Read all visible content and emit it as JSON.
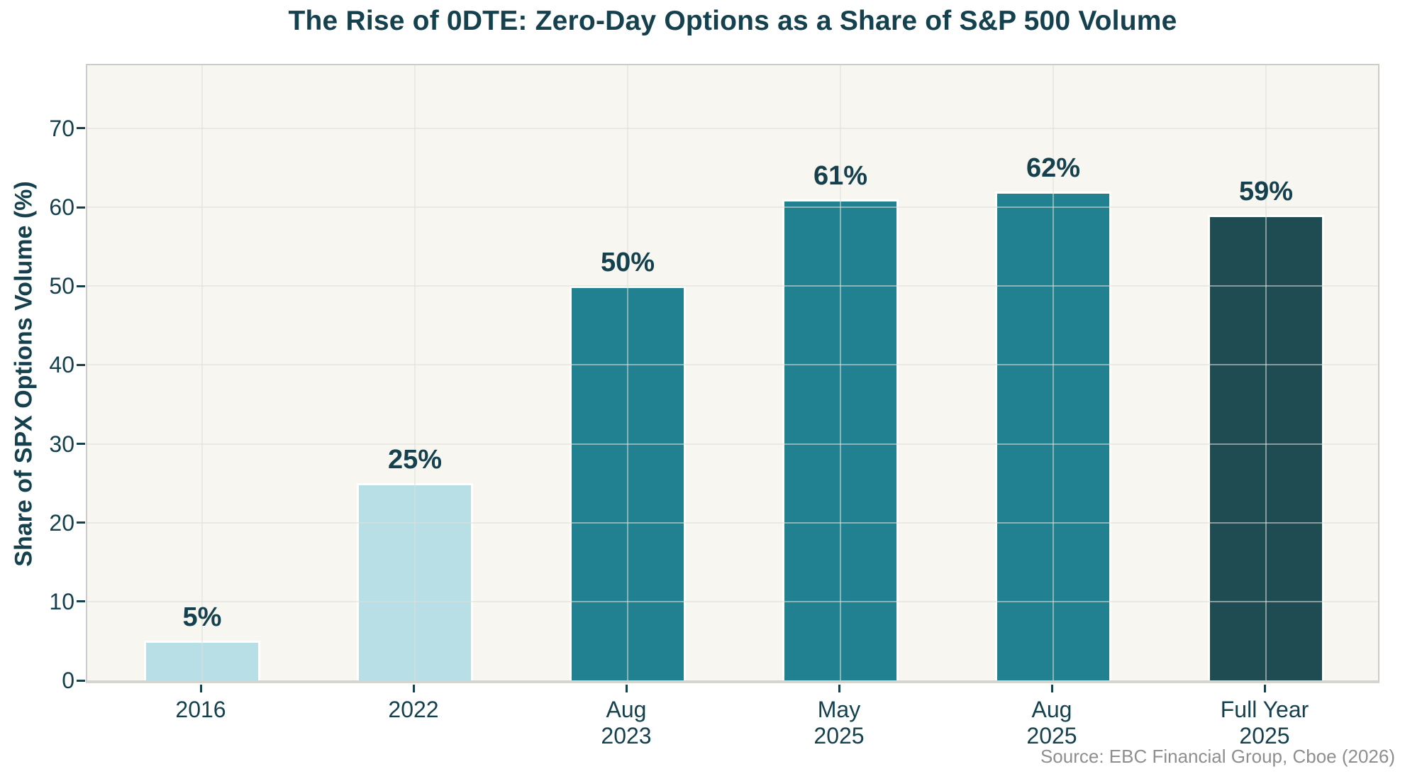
{
  "title": "The Rise of 0DTE: Zero-Day Options as a Share of S&P 500 Volume",
  "source": "Source: EBC Financial Group, Cboe (2026)",
  "colors": {
    "text_dark": "#15404d",
    "source_gray": "#8e8e8e",
    "plot_background": "#f8f6f1",
    "figure_background": "#ffffff",
    "spine": "#cdccc8",
    "axis_line": "#d6d4cf",
    "gridline": "#dededa",
    "bar_edge": "#ffffff",
    "bar_light_blue": "#b8dee6",
    "bar_teal": "#218191",
    "bar_dark_teal": "#1f4b52"
  },
  "chart_data": {
    "type": "bar",
    "title": "The Rise of 0DTE: Zero-Day Options as a Share of S&P 500 Volume",
    "xlabel": "",
    "ylabel": "Share of SPX Options Volume (%)",
    "categories": [
      "2016",
      "2022",
      "Aug\n2023",
      "May\n2025",
      "Aug\n2025",
      "Full Year\n2025"
    ],
    "values": [
      5,
      25,
      50,
      61,
      62,
      59
    ],
    "value_labels": [
      "5%",
      "25%",
      "50%",
      "61%",
      "62%",
      "59%"
    ],
    "bar_colors": [
      "#b8dee6",
      "#b8dee6",
      "#218191",
      "#218191",
      "#218191",
      "#1f4b52"
    ],
    "yticks": [
      0,
      10,
      20,
      30,
      40,
      50,
      60,
      70
    ],
    "ylim": [
      0,
      78
    ],
    "grid": true,
    "grid_over_bars": true,
    "legend_position": "none",
    "annotations": [
      "Source: EBC Financial Group, Cboe (2026)"
    ]
  }
}
